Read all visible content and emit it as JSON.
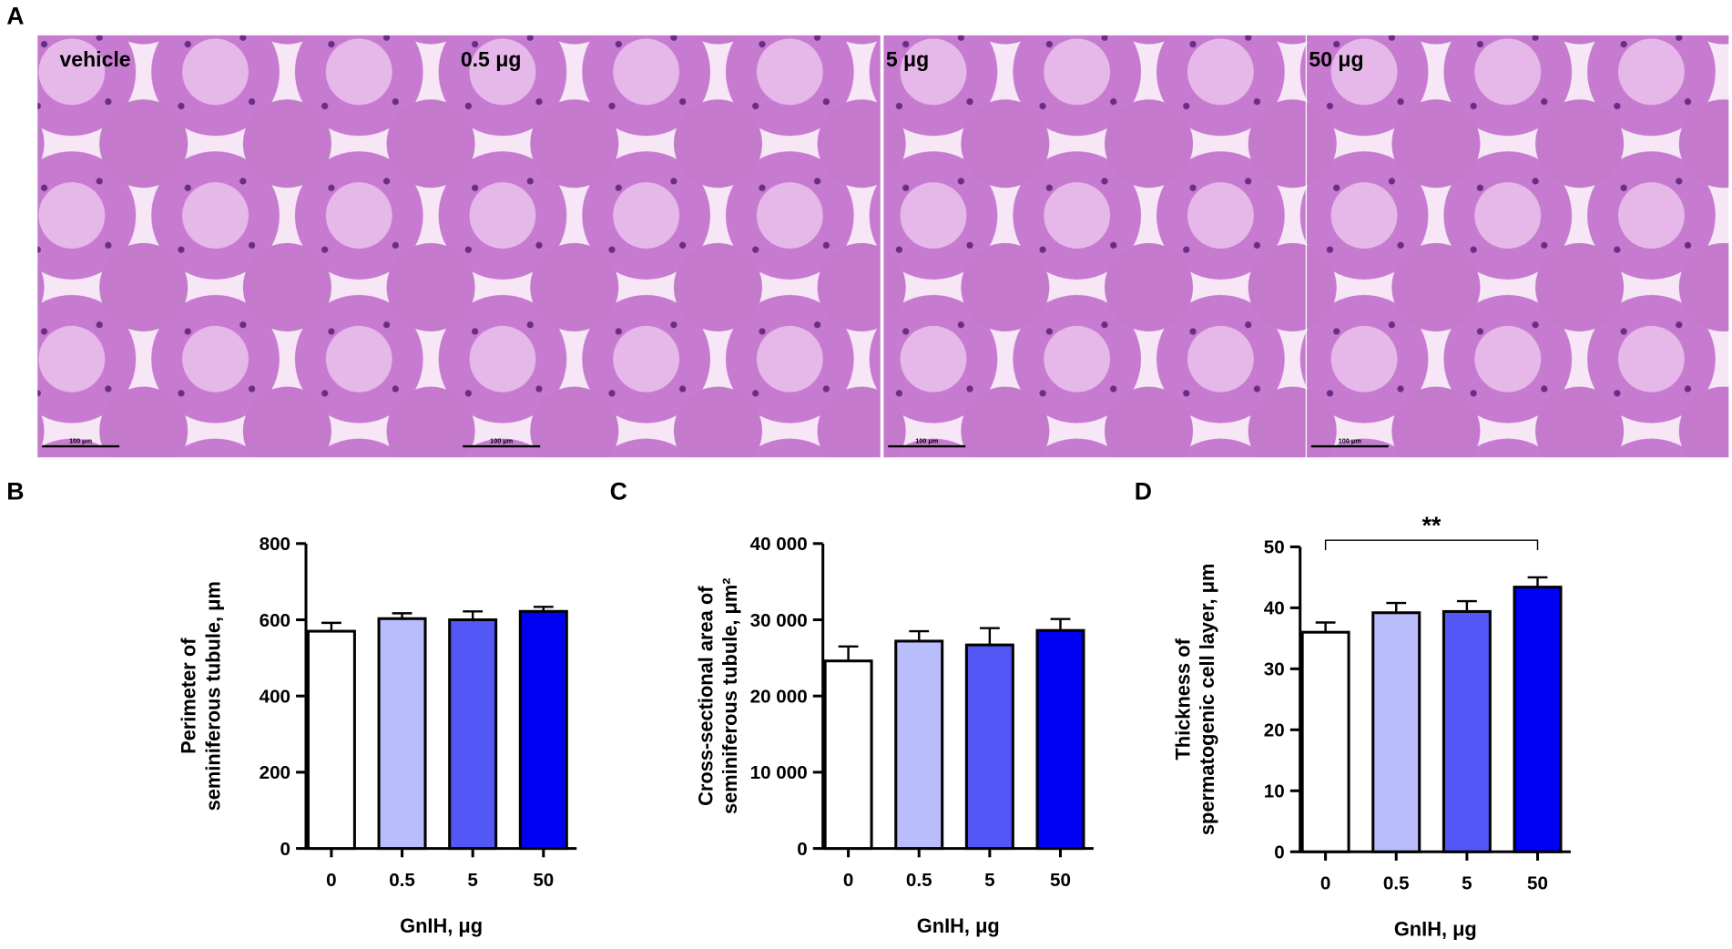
{
  "figure": {
    "panel_letters": [
      "A",
      "B",
      "C",
      "D"
    ],
    "images": [
      {
        "label": "vehicle",
        "scale": "100 μm"
      },
      {
        "label": "0.5 μg",
        "scale": "100 μm"
      },
      {
        "label": "5 μg",
        "scale": "100 μm"
      },
      {
        "label": "50 μg",
        "scale": "100 μm"
      }
    ]
  },
  "chart_data": [
    {
      "type": "bar",
      "categories": [
        "0",
        "0.5",
        "5",
        "50"
      ],
      "values": [
        570,
        603,
        600,
        622
      ],
      "errors": [
        22,
        14,
        22,
        12
      ],
      "colors": [
        "#ffffff",
        "#b9bdfb",
        "#5257f6",
        "#0000f2"
      ],
      "ylim": [
        0,
        800
      ],
      "yticks": [
        0,
        200,
        400,
        600,
        800
      ],
      "ylabel": [
        "Perimeter of",
        "seminiferous tubule, μm"
      ],
      "xlabel": "GnIH, μg"
    },
    {
      "type": "bar",
      "categories": [
        "0",
        "0.5",
        "5",
        "50"
      ],
      "values": [
        24600,
        27200,
        26700,
        28600
      ],
      "errors": [
        1900,
        1300,
        2200,
        1500
      ],
      "colors": [
        "#ffffff",
        "#b9bdfb",
        "#5257f6",
        "#0000f2"
      ],
      "ylim": [
        0,
        40000
      ],
      "yticks": [
        0,
        {
          "value": 10000,
          "label": "10 000"
        },
        {
          "value": 20000,
          "label": "20 000"
        },
        {
          "value": 30000,
          "label": "30 000"
        },
        {
          "value": 40000,
          "label": "40 000"
        }
      ],
      "ylabel": [
        "Cross-sectional area of",
        "seminiferous tubule, μm²"
      ],
      "xlabel": "GnIH, μg"
    },
    {
      "type": "bar",
      "categories": [
        "0",
        "0.5",
        "5",
        "50"
      ],
      "values": [
        36.0,
        39.2,
        39.4,
        43.4
      ],
      "errors": [
        1.6,
        1.6,
        1.7,
        1.6
      ],
      "colors": [
        "#ffffff",
        "#b9bdfb",
        "#5257f6",
        "#0000f2"
      ],
      "ylim": [
        0,
        50
      ],
      "yticks": [
        0,
        10,
        20,
        30,
        40,
        50
      ],
      "ylabel": [
        "Thickness of",
        "spermatogenic cell layer, μm"
      ],
      "xlabel": "GnIH, μg",
      "annotation": "**"
    }
  ]
}
